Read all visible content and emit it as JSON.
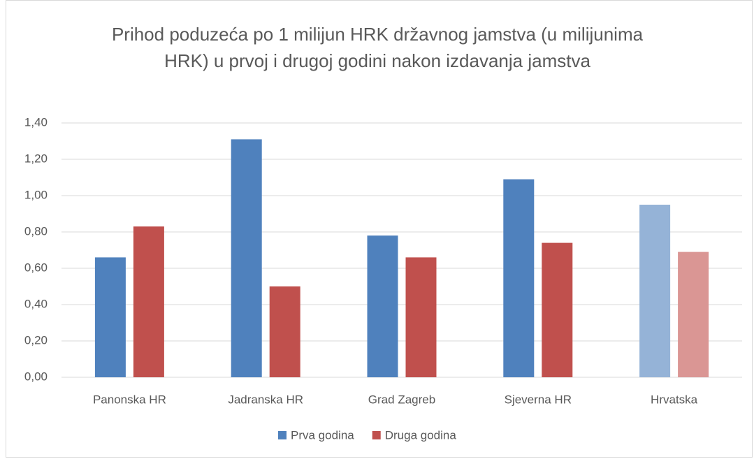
{
  "chart_data": {
    "type": "bar",
    "title": "Prihod poduzeća po 1 milijun HRK državnog jamstva (u milijunima HRK) u prvoj i drugoj godini nakon izdavanja jamstva",
    "categories": [
      "Panonska HR",
      "Jadranska HR",
      "Grad Zagreb",
      "Sjeverna HR",
      "Hrvatska"
    ],
    "series": [
      {
        "name": "Prva godina",
        "color": "#4f81bd",
        "colors": [
          "#4f81bd",
          "#4f81bd",
          "#4f81bd",
          "#4f81bd",
          "#95b3d7"
        ],
        "values": [
          0.66,
          1.31,
          0.78,
          1.09,
          0.95
        ]
      },
      {
        "name": "Druga godina",
        "color": "#c0504d",
        "colors": [
          "#c0504d",
          "#c0504d",
          "#c0504d",
          "#c0504d",
          "#da9694"
        ],
        "values": [
          0.83,
          0.5,
          0.66,
          0.74,
          0.69
        ]
      }
    ],
    "ylim": [
      0,
      1.4
    ],
    "yticks": [
      {
        "value": 0,
        "label": "0,00"
      },
      {
        "value": 0.2,
        "label": "0,20"
      },
      {
        "value": 0.4,
        "label": "0,40"
      },
      {
        "value": 0.6,
        "label": "0,60"
      },
      {
        "value": 0.8,
        "label": "0,80"
      },
      {
        "value": 1.0,
        "label": "1,00"
      },
      {
        "value": 1.2,
        "label": "1,20"
      },
      {
        "value": 1.4,
        "label": "1,40"
      }
    ],
    "grid": true,
    "legend": "bottom"
  }
}
